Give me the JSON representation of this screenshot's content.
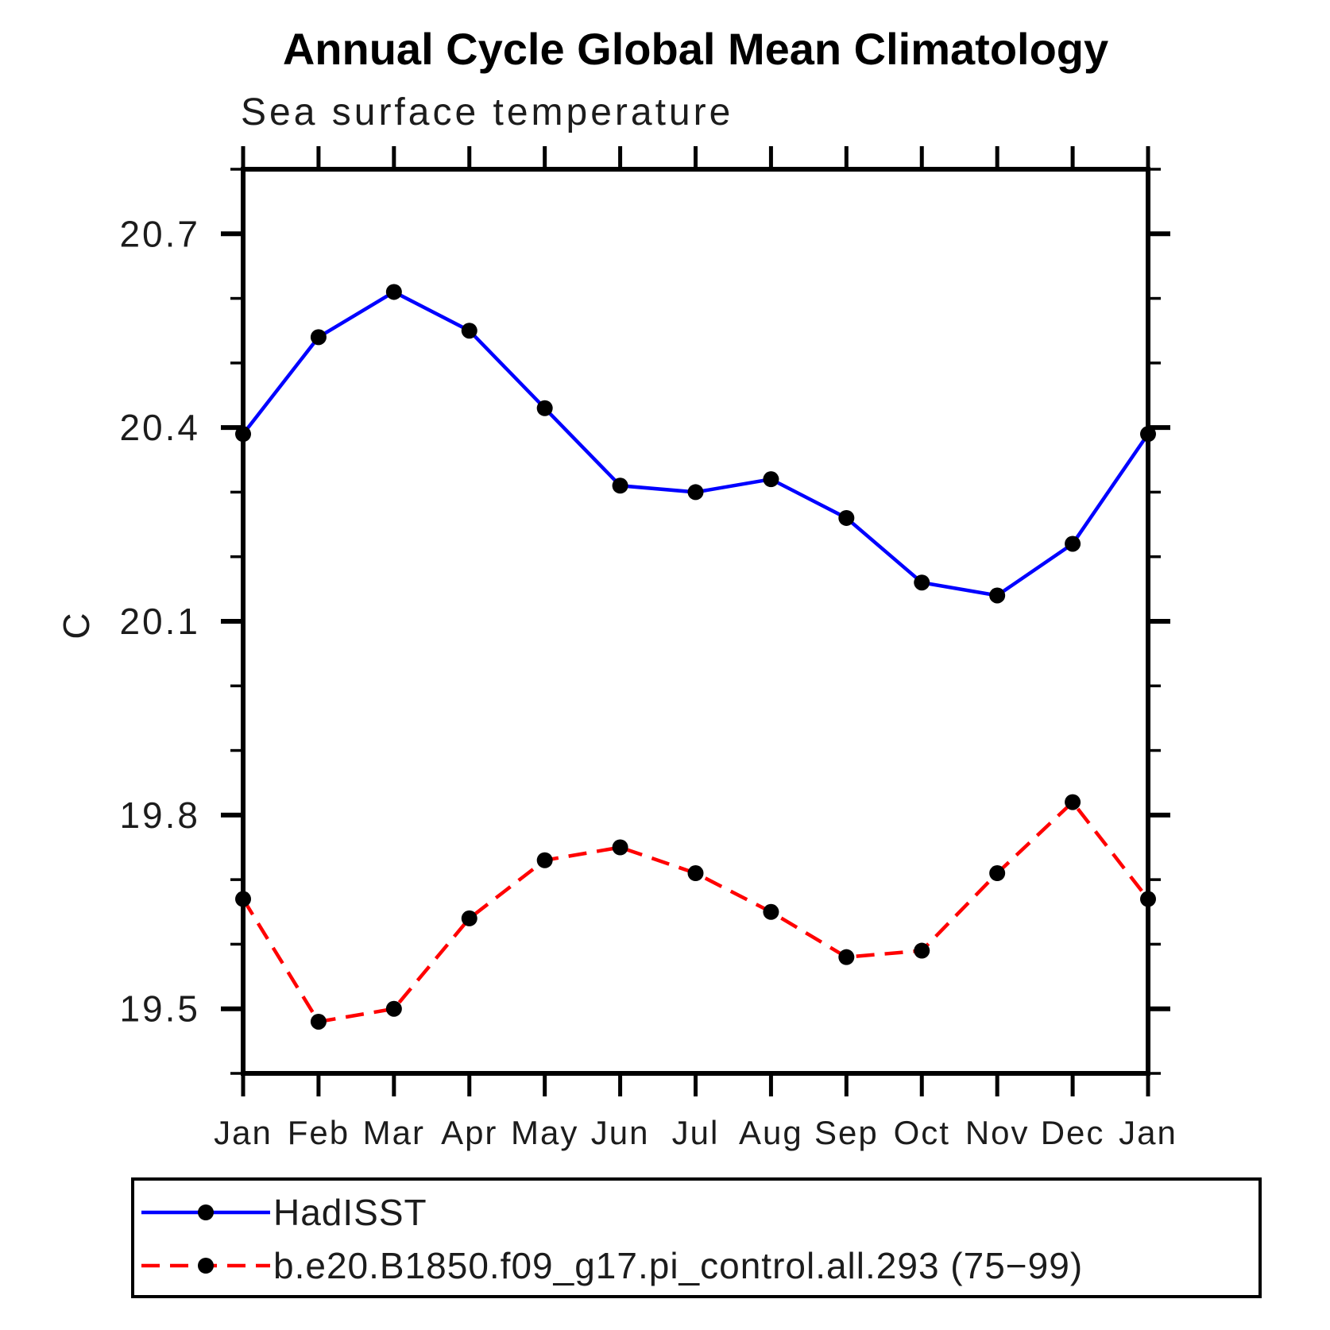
{
  "title": "Annual Cycle Global Mean Climatology",
  "subtitle": "Sea surface temperature",
  "y_axis_title": "C",
  "colors": {
    "hadisst_line": "#0000ff",
    "model_line": "#ff0000",
    "marker": "#000000",
    "axis": "#000000"
  },
  "chart_data": {
    "type": "line",
    "title": "Annual Cycle Global Mean Climatology",
    "subtitle": "Sea surface temperature",
    "ylabel": "C",
    "x_categories": [
      "Jan",
      "Feb",
      "Mar",
      "Apr",
      "May",
      "Jun",
      "Jul",
      "Aug",
      "Sep",
      "Oct",
      "Nov",
      "Dec",
      "Jan"
    ],
    "ylim": [
      19.4,
      20.8
    ],
    "yticks_labeled": [
      19.5,
      19.8,
      20.1,
      20.4,
      20.7
    ],
    "ytick_minor_step": 0.1,
    "grid": false,
    "legend_position": "bottom-left-box",
    "series": [
      {
        "name": "HadISST",
        "color": "#0000ff",
        "style": "solid",
        "marker": "circle",
        "values": [
          20.39,
          20.54,
          20.61,
          20.55,
          20.43,
          20.31,
          20.3,
          20.32,
          20.26,
          20.16,
          20.14,
          20.22,
          20.39
        ]
      },
      {
        "name": "b.e20.B1850.f09_g17.pi_control.all.293 (75−99)",
        "color": "#ff0000",
        "style": "dashed",
        "marker": "circle",
        "values": [
          19.67,
          19.48,
          19.5,
          19.64,
          19.73,
          19.75,
          19.71,
          19.65,
          19.58,
          19.59,
          19.71,
          19.82,
          19.67
        ]
      }
    ]
  }
}
